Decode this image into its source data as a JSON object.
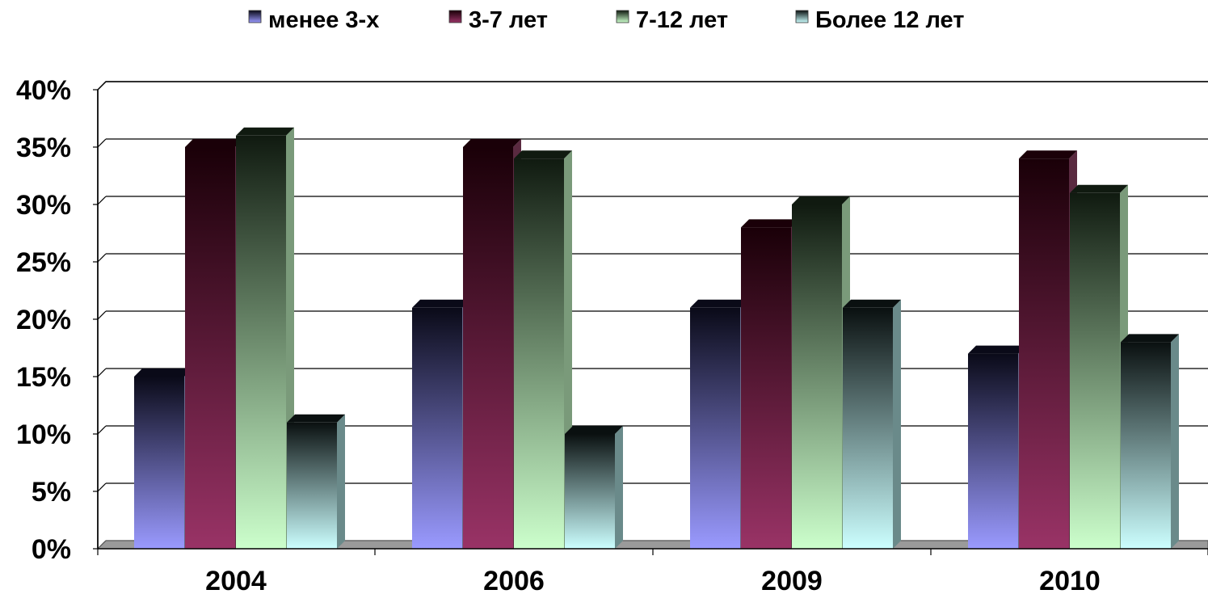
{
  "chart_data": {
    "type": "bar",
    "title": "",
    "xlabel": "",
    "ylabel": "",
    "categories": [
      "2004",
      "2006",
      "2009",
      "2010"
    ],
    "series": [
      {
        "name": "менее 3-х",
        "values": [
          15,
          21,
          21,
          17
        ],
        "color_top": "#0a0a18",
        "color_bottom": "#9a9aff",
        "side": "#6a6a8a"
      },
      {
        "name": "3-7 лет",
        "values": [
          35,
          35,
          28,
          34
        ],
        "color_top": "#1a0008",
        "color_bottom": "#993366",
        "side": "#5a2a40"
      },
      {
        "name": "7-12 лет",
        "values": [
          36,
          34,
          30,
          31
        ],
        "color_top": "#101a10",
        "color_bottom": "#ccffcc",
        "side": "#7a9a7a"
      },
      {
        "name": "Более 12 лет",
        "values": [
          11,
          10,
          21,
          18
        ],
        "color_top": "#0a1010",
        "color_bottom": "#ccffff",
        "side": "#6a8a8a"
      }
    ],
    "ylim": [
      0,
      40
    ],
    "y_ticks": [
      0,
      5,
      10,
      15,
      20,
      25,
      30,
      35,
      40
    ],
    "y_tick_labels": [
      "0%",
      "5%",
      "10%",
      "15%",
      "20%",
      "25%",
      "30%",
      "35%",
      "40%"
    ],
    "grid": true,
    "legend_position": "top",
    "style": "3d-clustered-column",
    "floor_color": "#9a9a9a"
  }
}
